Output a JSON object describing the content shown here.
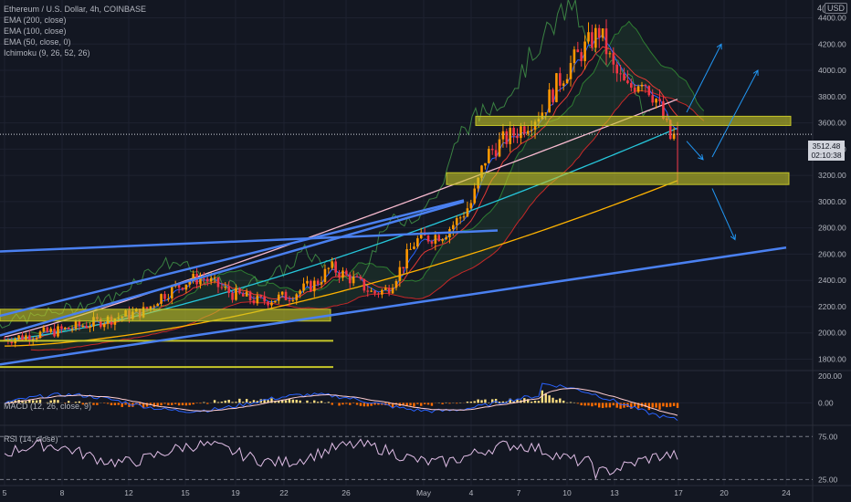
{
  "header": {
    "symbol_line": "Ethereum / U.S. Dollar, 4h, COINBASE",
    "indicators": [
      "EMA (200, close)",
      "EMA (100, close)",
      "EMA (50, close, 0)",
      "Ichimoku (9, 26, 52, 26)"
    ],
    "currency_prefix": "4(",
    "currency": "USD"
  },
  "macd_label": "MACD (12, 26, close, 9)",
  "rsi_label": "RSI (14, close)",
  "last_price": {
    "value": "3512.48",
    "countdown": "02:10:38"
  },
  "colors": {
    "background": "#131722",
    "candle_up": "#ff9800",
    "candle_down": "#f23645",
    "support_zone": "#c6c628",
    "trendline": "#4a80f0",
    "ema200": "#ffb300",
    "ema100": "#26c6da",
    "ema50": "#f8bbd0",
    "ichimoku_lead": "#4caf50",
    "ichimoku_base": "#e53935"
  },
  "chart_data": [
    {
      "type": "candlestick",
      "panel": "price",
      "title": "Ethereum / U.S. Dollar, 4h, COINBASE",
      "y_ticks": [
        1800,
        2000,
        2200,
        2400,
        2600,
        2800,
        3000,
        3200,
        3400,
        3600,
        3800,
        4000,
        4200,
        4400
      ],
      "y_tick_labels": [
        "1800.00",
        "2000.00",
        "2200.00",
        "2400.00",
        "2600.00",
        "2800.00",
        "3000.00",
        "3200.00",
        "3400.00",
        "3600.00",
        "3800.00",
        "4000.00",
        "4200.00",
        "4400.00"
      ],
      "ylim": [
        1720,
        4480
      ],
      "x_tick_labels": [
        "5",
        "8",
        "12",
        "15",
        "19",
        "22",
        "26",
        "May",
        "4",
        "7",
        "10",
        "13",
        "17",
        "20",
        "24"
      ],
      "close_path": [
        [
          0,
          1950
        ],
        [
          4,
          2020
        ],
        [
          8,
          2120
        ],
        [
          10,
          2170
        ],
        [
          11,
          2280
        ],
        [
          13,
          2400
        ],
        [
          14,
          2420
        ],
        [
          16,
          2300
        ],
        [
          18,
          2240
        ],
        [
          20,
          2280
        ],
        [
          22,
          2380
        ],
        [
          23,
          2500
        ],
        [
          25,
          2380
        ],
        [
          26,
          2300
        ],
        [
          27,
          2330
        ],
        [
          28,
          2500
        ],
        [
          29,
          2700
        ],
        [
          31,
          2760
        ],
        [
          32,
          2860
        ],
        [
          33,
          3000
        ],
        [
          34,
          3350
        ],
        [
          35,
          3450
        ],
        [
          36,
          3520
        ],
        [
          38,
          3700
        ],
        [
          39,
          3900
        ],
        [
          40,
          4050
        ],
        [
          42,
          4300
        ],
        [
          43,
          4000
        ],
        [
          44,
          3850
        ],
        [
          45,
          3950
        ],
        [
          46,
          3780
        ],
        [
          47,
          3480
        ],
        [
          47.5,
          3512
        ]
      ],
      "zones": [
        {
          "from": 2090,
          "to": 2180
        },
        {
          "from": 3130,
          "to": 3220
        },
        {
          "from": 3580,
          "to": 3650
        }
      ],
      "horizontal_levels": [
        1940,
        1740
      ],
      "trendlines": [
        "ascending channel upper",
        "ascending channel lower",
        "long-term support",
        "resistance"
      ],
      "scenario_arrows": [
        "up",
        "up",
        "down",
        "down"
      ],
      "moving_averages": [
        {
          "name": "EMA (200, close)",
          "start": 1900,
          "end": 3160
        },
        {
          "name": "EMA (100, close)",
          "start": 1950,
          "end": 3560
        },
        {
          "name": "EMA (50, close, 0)",
          "start": 1970,
          "end": 3780
        }
      ],
      "last_price": 3512.48
    },
    {
      "type": "histogram+line",
      "panel": "macd",
      "title": "MACD (12, 26, close, 9)",
      "y_ticks": [
        0,
        200
      ],
      "y_tick_labels": [
        "0.00",
        "200.00"
      ],
      "ylim": [
        -160,
        240
      ]
    },
    {
      "type": "line",
      "panel": "rsi",
      "title": "RSI (14, close)",
      "y_ticks": [
        25,
        75
      ],
      "y_tick_labels": [
        "25.00",
        "75.00"
      ],
      "ylim": [
        18,
        88
      ]
    }
  ]
}
